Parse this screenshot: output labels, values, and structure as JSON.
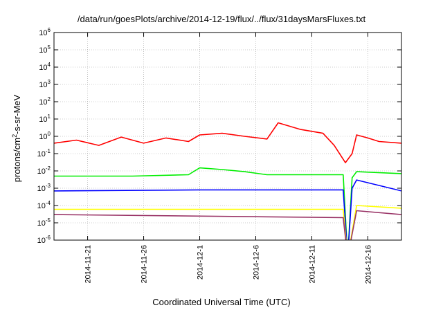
{
  "chart_data": {
    "type": "line",
    "title": "/data/run/goesPlots/archive/2014-12-19/flux/../flux/31daysMarsFluxes.txt",
    "xlabel": "Coordinated Universal Time (UTC)",
    "ylabel": {
      "prefix": "protons/cm",
      "sup": "2",
      "suffix": "-s-sr-MeV"
    },
    "y_scale": "log",
    "ylim": [
      1e-06,
      1000000.0
    ],
    "y_ticks": [
      {
        "base": "10",
        "exp": "-6",
        "value": 1e-06
      },
      {
        "base": "10",
        "exp": "-5",
        "value": 1e-05
      },
      {
        "base": "10",
        "exp": "-4",
        "value": 0.0001
      },
      {
        "base": "10",
        "exp": "-3",
        "value": 0.001
      },
      {
        "base": "10",
        "exp": "-2",
        "value": 0.01
      },
      {
        "base": "10",
        "exp": "-1",
        "value": 0.1
      },
      {
        "base": "10",
        "exp": "0",
        "value": 1
      },
      {
        "base": "10",
        "exp": "1",
        "value": 10
      },
      {
        "base": "10",
        "exp": "2",
        "value": 100
      },
      {
        "base": "10",
        "exp": "3",
        "value": 1000
      },
      {
        "base": "10",
        "exp": "4",
        "value": 10000
      },
      {
        "base": "10",
        "exp": "5",
        "value": 100000
      },
      {
        "base": "10",
        "exp": "6",
        "value": 1000000
      }
    ],
    "x_ticks": [
      "2014-11-21",
      "2014-11-26",
      "2014-12-1",
      "2014-12-6",
      "2014-12-11",
      "2014-12-16"
    ],
    "xlim": [
      "2014-11-18",
      "2014-12-19"
    ],
    "grid": true,
    "legend": "none",
    "series": [
      {
        "color": "#ff0000",
        "values": [
          {
            "x": "2014-11-18",
            "y": 0.4
          },
          {
            "x": "2014-11-20",
            "y": 0.6
          },
          {
            "x": "2014-11-22",
            "y": 0.3
          },
          {
            "x": "2014-11-24",
            "y": 0.9
          },
          {
            "x": "2014-11-26",
            "y": 0.4
          },
          {
            "x": "2014-11-28",
            "y": 0.8
          },
          {
            "x": "2014-11-30",
            "y": 0.5
          },
          {
            "x": "2014-12-01",
            "y": 1.2
          },
          {
            "x": "2014-12-03",
            "y": 1.5
          },
          {
            "x": "2014-12-05",
            "y": 1.0
          },
          {
            "x": "2014-12-07",
            "y": 0.7
          },
          {
            "x": "2014-12-08",
            "y": 6.0
          },
          {
            "x": "2014-12-10",
            "y": 2.5
          },
          {
            "x": "2014-12-12",
            "y": 1.5
          },
          {
            "x": "2014-12-13",
            "y": 0.3
          },
          {
            "x": "2014-12-14",
            "y": 0.03
          },
          {
            "x": "2014-12-14.6",
            "y": 0.1
          },
          {
            "x": "2014-12-15",
            "y": 1.2
          },
          {
            "x": "2014-12-16",
            "y": 0.8
          },
          {
            "x": "2014-12-17",
            "y": 0.5
          },
          {
            "x": "2014-12-19",
            "y": 0.4
          }
        ]
      },
      {
        "color": "#00ee00",
        "values": [
          {
            "x": "2014-11-18",
            "y": 0.005
          },
          {
            "x": "2014-11-25",
            "y": 0.005
          },
          {
            "x": "2014-11-30",
            "y": 0.006
          },
          {
            "x": "2014-12-01",
            "y": 0.015
          },
          {
            "x": "2014-12-03",
            "y": 0.012
          },
          {
            "x": "2014-12-05",
            "y": 0.009
          },
          {
            "x": "2014-12-07",
            "y": 0.006
          },
          {
            "x": "2014-12-13.8",
            "y": 0.006
          },
          {
            "x": "2014-12-14.2",
            "y": 1e-07
          },
          {
            "x": "2014-12-14.6",
            "y": 0.004
          },
          {
            "x": "2014-12-15",
            "y": 0.009
          },
          {
            "x": "2014-12-19",
            "y": 0.007
          }
        ]
      },
      {
        "color": "#0000ff",
        "values": [
          {
            "x": "2014-11-18",
            "y": 0.0007
          },
          {
            "x": "2014-12-01",
            "y": 0.0008
          },
          {
            "x": "2014-12-13.8",
            "y": 0.0008
          },
          {
            "x": "2014-12-14.2",
            "y": 1e-07
          },
          {
            "x": "2014-12-14.6",
            "y": 0.001
          },
          {
            "x": "2014-12-15",
            "y": 0.003
          },
          {
            "x": "2014-12-19",
            "y": 0.0007
          }
        ]
      },
      {
        "color": "#ffff00",
        "values": [
          {
            "x": "2014-11-18",
            "y": 6e-05
          },
          {
            "x": "2014-12-13.8",
            "y": 6e-05
          },
          {
            "x": "2014-12-14.2",
            "y": 1e-07
          },
          {
            "x": "2014-12-15",
            "y": 0.0001
          },
          {
            "x": "2014-12-19",
            "y": 7e-05
          }
        ]
      },
      {
        "color": "#993366",
        "values": [
          {
            "x": "2014-11-18",
            "y": 3e-05
          },
          {
            "x": "2014-12-13.8",
            "y": 2e-05
          },
          {
            "x": "2014-12-14.2",
            "y": 1e-07
          },
          {
            "x": "2014-12-15",
            "y": 5e-05
          },
          {
            "x": "2014-12-19",
            "y": 3e-05
          }
        ]
      }
    ]
  }
}
